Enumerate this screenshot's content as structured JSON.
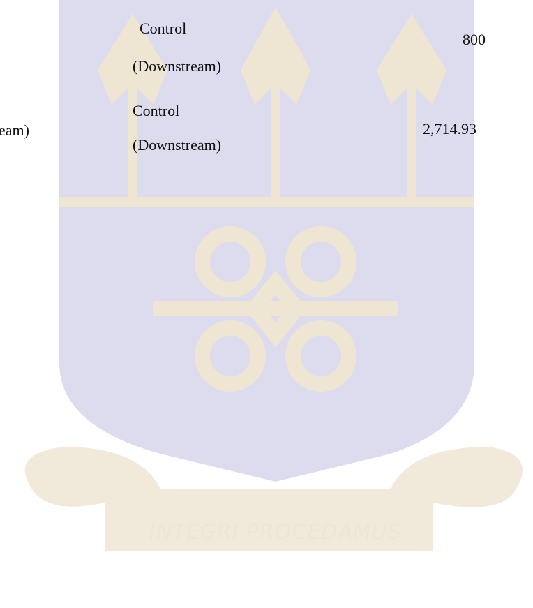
{
  "table": {
    "rows": [
      {
        "cells": [
          {
            "lines": [
              "Control",
              "(Downstream)"
            ]
          },
          {
            "lines": [
              "800"
            ]
          }
        ]
      },
      {
        "cells": [
          {
            "lines": [
              "eam)"
            ]
          },
          {
            "lines": [
              "Control",
              "(Downstream)"
            ]
          },
          {
            "lines": [
              "2,714.93"
            ]
          }
        ]
      }
    ]
  },
  "watermark": {
    "motto": "INTEGRI PROCEDAMUS"
  }
}
